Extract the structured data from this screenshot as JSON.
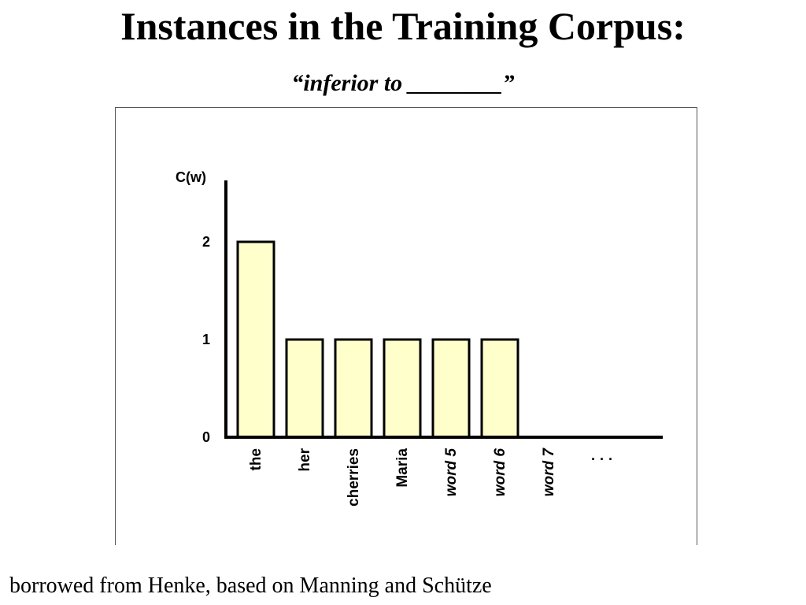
{
  "slide": {
    "title": "Instances in the Training Corpus:",
    "subtitle": "“inferior to ________”",
    "credit": "borrowed from Henke, based on Manning and Schütze"
  },
  "chart_data": {
    "type": "bar",
    "ylabel": "C(w)",
    "xlabel": "",
    "title": "",
    "ylim": [
      0,
      2
    ],
    "yticks": [
      0,
      1,
      2
    ],
    "grid": false,
    "legend": "none",
    "categories": [
      {
        "label": "the",
        "italic": false
      },
      {
        "label": "her",
        "italic": false
      },
      {
        "label": "cherries",
        "italic": false
      },
      {
        "label": "Maria",
        "italic": false
      },
      {
        "label": "word 5",
        "italic": true
      },
      {
        "label": "word 6",
        "italic": true
      },
      {
        "label": "word 7",
        "italic": true
      }
    ],
    "values": [
      2,
      1,
      1,
      1,
      1,
      1,
      0
    ],
    "ellipsis": "· · ·",
    "colors": {
      "bar_fill": "#ffffcc",
      "bar_stroke": "#000000",
      "axis": "#000000"
    }
  }
}
